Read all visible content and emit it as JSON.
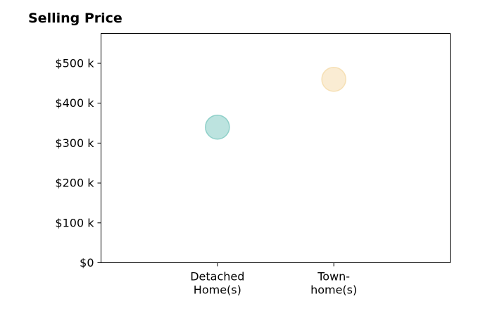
{
  "chart_data": {
    "type": "scatter",
    "title": "Selling Price",
    "xlabel": "",
    "ylabel": "",
    "categories": [
      [
        "Detached",
        "Home(s)"
      ],
      [
        "Town-",
        "home(s)"
      ]
    ],
    "series": [
      {
        "points": [
          {
            "category": "Detached Home(s)",
            "y": 340000,
            "color": "#8fd0c9"
          },
          {
            "category": "Town-home(s)",
            "y": 460000,
            "color": "#f6e0b5"
          }
        ]
      }
    ],
    "ylim": [
      0,
      575000
    ],
    "yticks": [
      0,
      100000,
      200000,
      300000,
      400000,
      500000
    ],
    "ytick_labels": [
      "$0",
      "$100 k",
      "$200 k",
      "$300 k",
      "$400 k",
      "$500 k"
    ],
    "xlim": [
      0,
      3
    ],
    "grid": false,
    "legend": false
  }
}
